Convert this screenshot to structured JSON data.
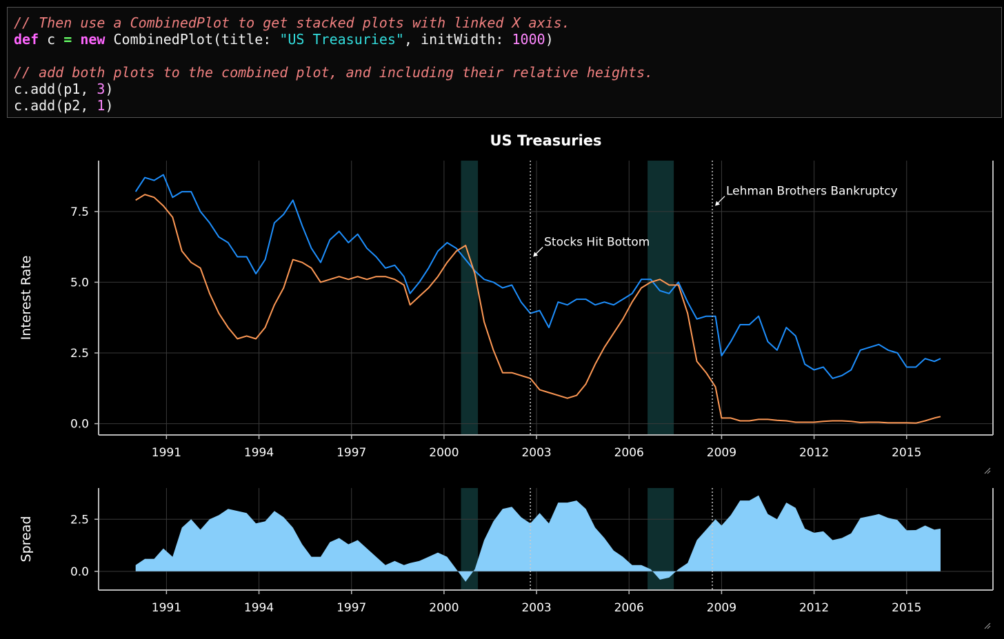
{
  "code": {
    "comment1": "// Then use a CombinedPlot to get stacked plots with linked X axis.",
    "line2": {
      "kw1": "def",
      "v1": " c ",
      "op": "=",
      "sp": " ",
      "kw2": "new",
      "rest1": " CombinedPlot(title: ",
      "str": "\"US Treasuries\"",
      "rest2": ", initWidth: ",
      "num": "1000",
      "rest3": ")"
    },
    "comment2": "// add both plots to the combined plot, and including their relative heights.",
    "line4": {
      "a": "c.add(p1, ",
      "num": "3",
      "b": ")"
    },
    "line5": {
      "a": "c.add(p2, ",
      "num": "1",
      "b": ")"
    }
  },
  "chart_data": {
    "type": "line",
    "title": "US Treasuries",
    "colors": {
      "series1": "#1e90ff",
      "series2": "#ff9955",
      "spread": "#87cefa",
      "band": "#0e2f2f",
      "grid": "#3a3a3a",
      "axis": "#bbbbbb"
    },
    "x_ticks": [
      "1991",
      "1994",
      "1997",
      "2000",
      "2003",
      "2006",
      "2009",
      "2012",
      "2015"
    ],
    "x_tick_values": [
      1991,
      1994,
      1997,
      2000,
      2003,
      2006,
      2009,
      2012,
      2015
    ],
    "xlim": [
      1988.8,
      2017.8
    ],
    "recessions": [
      [
        2000.55,
        2001.1
      ],
      [
        2006.6,
        2007.45
      ]
    ],
    "markers": [
      {
        "x": 2002.8,
        "label": "Stocks Hit Bottom",
        "y": 5.9
      },
      {
        "x": 2008.7,
        "label": "Lehman Brothers Bankruptcy",
        "y": 7.7
      }
    ],
    "top": {
      "ylabel": "Interest Rate",
      "ylim": [
        -0.4,
        9.3
      ],
      "y_ticks": [
        0,
        2.5,
        5,
        7.5
      ],
      "y_tick_labels": [
        "0.0",
        "2.5",
        "5.0",
        "7.5"
      ],
      "series": [
        {
          "x": [
            1990,
            1990.3,
            1990.6,
            1990.9,
            1991.2,
            1991.5,
            1991.8,
            1992.1,
            1992.4,
            1992.7,
            1993.0,
            1993.3,
            1993.6,
            1993.9,
            1994.2,
            1994.5,
            1994.8,
            1995.1,
            1995.4,
            1995.7,
            1996.0,
            1996.3,
            1996.6,
            1996.9,
            1997.2,
            1997.5,
            1997.8,
            1998.1,
            1998.4,
            1998.7,
            1998.9,
            1999.2,
            1999.5,
            1999.8,
            2000.1,
            2000.4,
            2000.7,
            2001.0,
            2001.3,
            2001.6,
            2001.9,
            2002.2,
            2002.5,
            2002.8,
            2003.1,
            2003.4,
            2003.7,
            2004.0,
            2004.3,
            2004.6,
            2004.9,
            2005.2,
            2005.5,
            2005.8,
            2006.1,
            2006.4,
            2006.7,
            2007.0,
            2007.3,
            2007.6,
            2007.9,
            2008.2,
            2008.5,
            2008.8,
            2009.0,
            2009.3,
            2009.6,
            2009.9,
            2010.2,
            2010.5,
            2010.8,
            2011.1,
            2011.4,
            2011.7,
            2012.0,
            2012.3,
            2012.6,
            2012.9,
            2013.2,
            2013.5,
            2013.8,
            2014.1,
            2014.4,
            2014.7,
            2015.0,
            2015.3,
            2015.6,
            2015.9,
            2016.1
          ],
          "y": [
            8.2,
            8.7,
            8.6,
            8.8,
            8.0,
            8.2,
            8.2,
            7.5,
            7.1,
            6.6,
            6.4,
            5.9,
            5.9,
            5.3,
            5.8,
            7.1,
            7.4,
            7.9,
            7.0,
            6.2,
            5.7,
            6.5,
            6.8,
            6.4,
            6.7,
            6.2,
            5.9,
            5.5,
            5.6,
            5.2,
            4.6,
            5.0,
            5.5,
            6.1,
            6.4,
            6.2,
            5.8,
            5.4,
            5.1,
            5.0,
            4.8,
            4.9,
            4.3,
            3.9,
            4.0,
            3.4,
            4.3,
            4.2,
            4.4,
            4.4,
            4.2,
            4.3,
            4.2,
            4.4,
            4.6,
            5.1,
            5.1,
            4.7,
            4.6,
            5.0,
            4.3,
            3.7,
            3.8,
            3.8,
            2.4,
            2.9,
            3.5,
            3.5,
            3.8,
            2.9,
            2.6,
            3.4,
            3.1,
            2.1,
            1.9,
            2.0,
            1.6,
            1.7,
            1.9,
            2.6,
            2.7,
            2.8,
            2.6,
            2.5,
            2.0,
            2.0,
            2.3,
            2.2,
            2.3
          ]
        },
        {
          "x": [
            1990,
            1990.3,
            1990.6,
            1990.9,
            1991.2,
            1991.5,
            1991.8,
            1992.1,
            1992.4,
            1992.7,
            1993.0,
            1993.3,
            1993.6,
            1993.9,
            1994.2,
            1994.5,
            1994.8,
            1995.1,
            1995.4,
            1995.7,
            1996.0,
            1996.3,
            1996.6,
            1996.9,
            1997.2,
            1997.5,
            1997.8,
            1998.1,
            1998.4,
            1998.7,
            1998.9,
            1999.2,
            1999.5,
            1999.8,
            2000.1,
            2000.4,
            2000.7,
            2001.0,
            2001.3,
            2001.6,
            2001.9,
            2002.2,
            2002.5,
            2002.8,
            2003.1,
            2003.4,
            2003.7,
            2004.0,
            2004.3,
            2004.6,
            2004.9,
            2005.2,
            2005.5,
            2005.8,
            2006.1,
            2006.4,
            2006.7,
            2007.0,
            2007.3,
            2007.6,
            2007.9,
            2008.2,
            2008.5,
            2008.8,
            2009.0,
            2009.3,
            2009.6,
            2009.9,
            2010.2,
            2010.5,
            2010.8,
            2011.1,
            2011.4,
            2011.7,
            2012.0,
            2012.3,
            2012.6,
            2012.9,
            2013.2,
            2013.5,
            2013.8,
            2014.1,
            2014.4,
            2014.7,
            2015.0,
            2015.3,
            2015.6,
            2015.9,
            2016.1
          ],
          "y": [
            7.9,
            8.1,
            8.0,
            7.7,
            7.3,
            6.1,
            5.7,
            5.5,
            4.6,
            3.9,
            3.4,
            3.0,
            3.1,
            3.0,
            3.4,
            4.2,
            4.8,
            5.8,
            5.7,
            5.5,
            5.0,
            5.1,
            5.2,
            5.1,
            5.2,
            5.1,
            5.2,
            5.2,
            5.1,
            4.9,
            4.2,
            4.5,
            4.8,
            5.2,
            5.7,
            6.1,
            6.3,
            5.3,
            3.6,
            2.6,
            1.8,
            1.8,
            1.7,
            1.6,
            1.2,
            1.1,
            1.0,
            0.9,
            1.0,
            1.4,
            2.1,
            2.7,
            3.2,
            3.7,
            4.3,
            4.8,
            5.0,
            5.1,
            4.9,
            4.9,
            3.9,
            2.2,
            1.8,
            1.3,
            0.2,
            0.2,
            0.1,
            0.1,
            0.15,
            0.15,
            0.12,
            0.1,
            0.05,
            0.05,
            0.05,
            0.08,
            0.1,
            0.1,
            0.08,
            0.04,
            0.05,
            0.05,
            0.03,
            0.03,
            0.03,
            0.02,
            0.1,
            0.2,
            0.25
          ]
        }
      ]
    },
    "bottom": {
      "ylabel": "Spread",
      "ylim": [
        -0.9,
        4.0
      ],
      "y_ticks": [
        0,
        2.5
      ],
      "y_tick_labels": [
        "0.0",
        "2.5"
      ],
      "x": [
        1990,
        1990.3,
        1990.6,
        1990.9,
        1991.2,
        1991.5,
        1991.8,
        1992.1,
        1992.4,
        1992.7,
        1993.0,
        1993.3,
        1993.6,
        1993.9,
        1994.2,
        1994.5,
        1994.8,
        1995.1,
        1995.4,
        1995.7,
        1996.0,
        1996.3,
        1996.6,
        1996.9,
        1997.2,
        1997.5,
        1997.8,
        1998.1,
        1998.4,
        1998.7,
        1998.9,
        1999.2,
        1999.5,
        1999.8,
        2000.1,
        2000.4,
        2000.7,
        2001.0,
        2001.3,
        2001.6,
        2001.9,
        2002.2,
        2002.5,
        2002.8,
        2003.1,
        2003.4,
        2003.7,
        2004.0,
        2004.3,
        2004.6,
        2004.9,
        2005.2,
        2005.5,
        2005.8,
        2006.1,
        2006.4,
        2006.7,
        2007.0,
        2007.3,
        2007.6,
        2007.9,
        2008.2,
        2008.5,
        2008.8,
        2009.0,
        2009.3,
        2009.6,
        2009.9,
        2010.2,
        2010.5,
        2010.8,
        2011.1,
        2011.4,
        2011.7,
        2012.0,
        2012.3,
        2012.6,
        2012.9,
        2013.2,
        2013.5,
        2013.8,
        2014.1,
        2014.4,
        2014.7,
        2015.0,
        2015.3,
        2015.6,
        2015.9,
        2016.1
      ],
      "y": [
        0.3,
        0.6,
        0.6,
        1.1,
        0.7,
        2.1,
        2.5,
        2.0,
        2.5,
        2.7,
        3.0,
        2.9,
        2.8,
        2.3,
        2.4,
        2.9,
        2.6,
        2.1,
        1.3,
        0.7,
        0.7,
        1.4,
        1.6,
        1.3,
        1.5,
        1.1,
        0.7,
        0.3,
        0.5,
        0.3,
        0.4,
        0.5,
        0.7,
        0.9,
        0.7,
        0.1,
        -0.5,
        0.1,
        1.5,
        2.4,
        3.0,
        3.1,
        2.6,
        2.3,
        2.8,
        2.3,
        3.3,
        3.3,
        3.4,
        3.0,
        2.1,
        1.6,
        1.0,
        0.7,
        0.3,
        0.3,
        0.1,
        -0.4,
        -0.3,
        0.1,
        0.4,
        1.5,
        2.0,
        2.5,
        2.2,
        2.7,
        3.4,
        3.4,
        3.65,
        2.75,
        2.5,
        3.3,
        3.05,
        2.05,
        1.85,
        1.92,
        1.5,
        1.6,
        1.82,
        2.56,
        2.65,
        2.75,
        2.57,
        2.47,
        1.97,
        1.98,
        2.2,
        2.0,
        2.05
      ]
    }
  }
}
